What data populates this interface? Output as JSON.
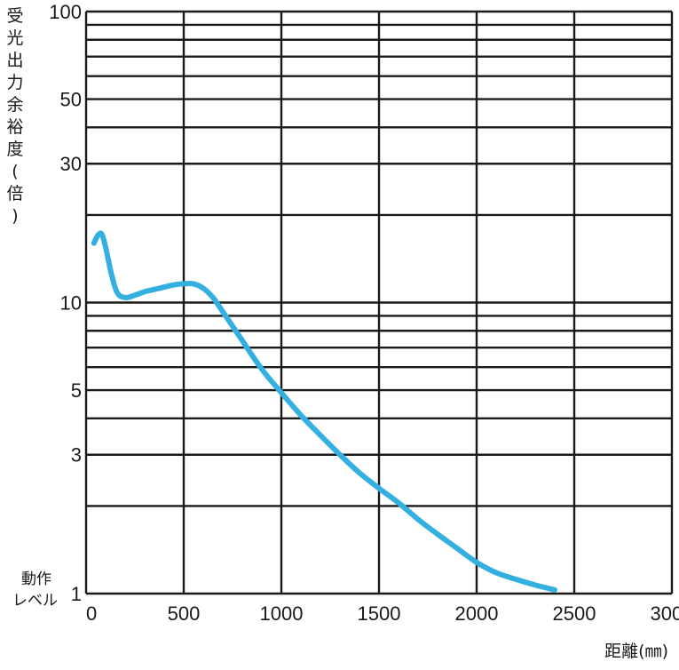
{
  "chart_data": {
    "type": "line",
    "ylabel": "受光出力余裕度(倍)",
    "xlabel": "距離(㎜)",
    "operating_level_label": [
      "動作",
      "レベル"
    ],
    "x_scale": "linear",
    "y_scale": "log",
    "xlim": [
      0,
      3000
    ],
    "ylim": [
      1,
      100
    ],
    "x_ticks": [
      0,
      500,
      1000,
      1500,
      2000,
      2500,
      3000
    ],
    "x_tick_labels": [
      "0",
      "500",
      "1000",
      "1500",
      "2000",
      "2500",
      "3000"
    ],
    "y_tick_labels": [
      {
        "value": 100,
        "label": "100"
      },
      {
        "value": 50,
        "label": "50"
      },
      {
        "value": 30,
        "label": "30"
      },
      {
        "value": 10,
        "label": "10"
      },
      {
        "value": 5,
        "label": "5"
      },
      {
        "value": 3,
        "label": "3"
      },
      {
        "value": 1,
        "label": "1"
      }
    ],
    "y_gridlines": [
      1,
      2,
      3,
      4,
      5,
      6,
      7,
      8,
      9,
      10,
      20,
      30,
      40,
      50,
      60,
      70,
      80,
      90,
      100
    ],
    "grid": true,
    "line_color": "#33b0e0",
    "series": [
      {
        "x": [
          40,
          60,
          80,
          100,
          130,
          160,
          200,
          250,
          300,
          350,
          400,
          450,
          500,
          550,
          600,
          650,
          700,
          800,
          900,
          1000,
          1100,
          1200,
          1300,
          1400,
          1500,
          1600,
          1700,
          1800,
          1900,
          2000,
          2100,
          2200,
          2300,
          2400
        ],
        "y": [
          16.0,
          17.0,
          17.2,
          15.5,
          12.5,
          10.8,
          10.4,
          10.6,
          10.9,
          11.1,
          11.3,
          11.5,
          11.6,
          11.6,
          11.2,
          10.4,
          9.3,
          7.4,
          5.9,
          4.9,
          4.1,
          3.5,
          3.0,
          2.6,
          2.3,
          2.05,
          1.8,
          1.6,
          1.43,
          1.28,
          1.18,
          1.12,
          1.07,
          1.03
        ]
      }
    ]
  }
}
